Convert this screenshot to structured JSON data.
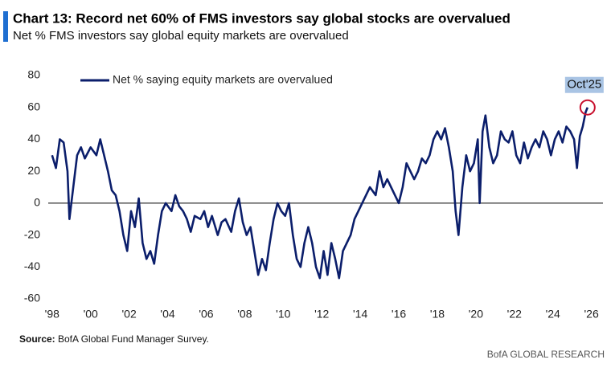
{
  "chart_data": {
    "type": "line",
    "title": "Chart 13: Record net 60% of FMS investors say global stocks are overvalued",
    "subtitle": "Net % FMS investors say global equity markets are overvalued",
    "source_label": "Source:",
    "source_text": "BofA Global Fund Manager Survey.",
    "footer": "BofA GLOBAL RESEARCH",
    "annotation": "Oct'25",
    "legend": "top-left",
    "xlim": [
      1997.8,
      2026.6
    ],
    "xticks": [
      {
        "value": 1998,
        "label": "'98"
      },
      {
        "value": 2000,
        "label": "'00"
      },
      {
        "value": 2002,
        "label": "'02"
      },
      {
        "value": 2004,
        "label": "'04"
      },
      {
        "value": 2006,
        "label": "'06"
      },
      {
        "value": 2008,
        "label": "'08"
      },
      {
        "value": 2010,
        "label": "'10"
      },
      {
        "value": 2012,
        "label": "'12"
      },
      {
        "value": 2014,
        "label": "'14"
      },
      {
        "value": 2016,
        "label": "'16"
      },
      {
        "value": 2018,
        "label": "'18"
      },
      {
        "value": 2020,
        "label": "'20"
      },
      {
        "value": 2022,
        "label": "'22"
      },
      {
        "value": 2024,
        "label": "'24"
      },
      {
        "value": 2026,
        "label": "'26"
      }
    ],
    "ylim": [
      -60,
      80
    ],
    "yticks": [
      -60,
      -40,
      -20,
      0,
      20,
      40,
      60,
      80
    ],
    "x": [
      1998.0,
      1998.2,
      1998.4,
      1998.6,
      1998.8,
      1998.9,
      1999.1,
      1999.3,
      1999.5,
      1999.7,
      2000.0,
      2000.3,
      2000.5,
      2000.7,
      2000.9,
      2001.1,
      2001.3,
      2001.5,
      2001.7,
      2001.9,
      2002.1,
      2002.3,
      2002.5,
      2002.7,
      2002.9,
      2003.1,
      2003.3,
      2003.5,
      2003.7,
      2003.9,
      2004.2,
      2004.4,
      2004.6,
      2004.8,
      2005.0,
      2005.2,
      2005.4,
      2005.7,
      2005.9,
      2006.1,
      2006.3,
      2006.6,
      2006.8,
      2007.0,
      2007.3,
      2007.5,
      2007.7,
      2007.9,
      2008.1,
      2008.3,
      2008.5,
      2008.7,
      2008.9,
      2009.1,
      2009.3,
      2009.5,
      2009.7,
      2009.9,
      2010.1,
      2010.3,
      2010.5,
      2010.7,
      2010.9,
      2011.1,
      2011.3,
      2011.5,
      2011.7,
      2011.9,
      2012.1,
      2012.3,
      2012.5,
      2012.7,
      2012.9,
      2013.1,
      2013.3,
      2013.5,
      2013.7,
      2013.9,
      2014.1,
      2014.3,
      2014.5,
      2014.8,
      2015.0,
      2015.2,
      2015.4,
      2015.6,
      2015.8,
      2016.0,
      2016.2,
      2016.4,
      2016.6,
      2016.8,
      2017.0,
      2017.2,
      2017.4,
      2017.6,
      2017.8,
      2018.0,
      2018.2,
      2018.4,
      2018.6,
      2018.8,
      2018.95,
      2019.1,
      2019.3,
      2019.5,
      2019.7,
      2019.9,
      2020.1,
      2020.2,
      2020.35,
      2020.5,
      2020.7,
      2020.9,
      2021.1,
      2021.3,
      2021.5,
      2021.7,
      2021.9,
      2022.1,
      2022.3,
      2022.5,
      2022.7,
      2022.9,
      2023.1,
      2023.3,
      2023.5,
      2023.7,
      2023.9,
      2024.1,
      2024.3,
      2024.5,
      2024.7,
      2024.9,
      2025.1,
      2025.25,
      2025.4,
      2025.55,
      2025.7,
      2025.8
    ],
    "series": [
      {
        "name": "Net % saying equity markets are overvalued",
        "color": "#0b1e6b",
        "values": [
          30,
          22,
          40,
          38,
          20,
          -10,
          10,
          30,
          35,
          28,
          35,
          30,
          40,
          30,
          20,
          8,
          5,
          -5,
          -20,
          -30,
          -5,
          -15,
          3,
          -25,
          -35,
          -30,
          -38,
          -20,
          -5,
          0,
          -5,
          5,
          -2,
          -5,
          -10,
          -18,
          -8,
          -10,
          -5,
          -15,
          -8,
          -20,
          -12,
          -10,
          -18,
          -5,
          3,
          -12,
          -20,
          -15,
          -30,
          -45,
          -35,
          -42,
          -25,
          -10,
          0,
          -5,
          -8,
          0,
          -20,
          -35,
          -40,
          -25,
          -15,
          -25,
          -40,
          -47,
          -30,
          -45,
          -25,
          -35,
          -47,
          -30,
          -25,
          -20,
          -10,
          -5,
          0,
          5,
          10,
          5,
          20,
          10,
          15,
          10,
          5,
          0,
          10,
          25,
          20,
          15,
          20,
          28,
          25,
          30,
          40,
          45,
          40,
          47,
          35,
          20,
          -5,
          -20,
          10,
          30,
          20,
          25,
          40,
          0,
          45,
          55,
          35,
          25,
          30,
          45,
          40,
          38,
          45,
          30,
          25,
          38,
          28,
          35,
          40,
          35,
          45,
          40,
          30,
          40,
          45,
          38,
          48,
          45,
          40,
          22,
          42,
          48,
          57,
          60
        ]
      }
    ]
  }
}
